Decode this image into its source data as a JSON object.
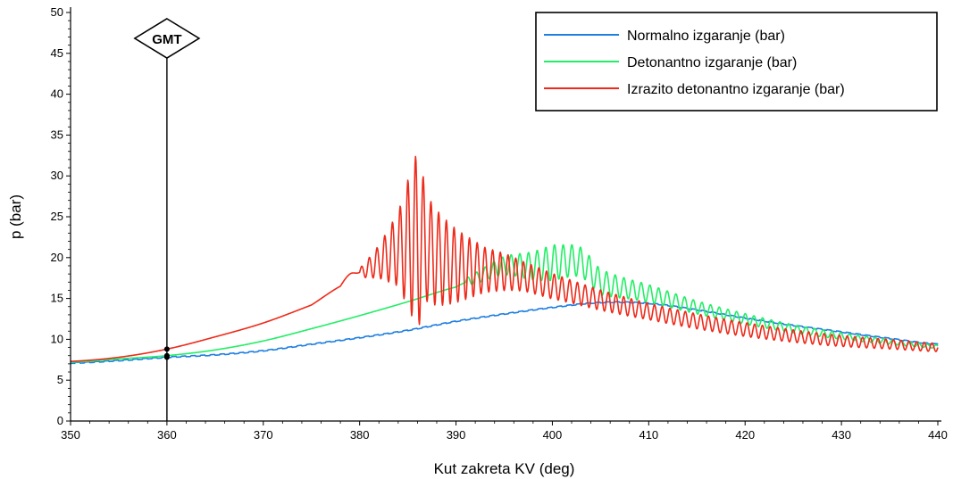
{
  "chart_data": {
    "type": "line",
    "xlabel": "Kut zakreta KV (deg)",
    "ylabel": "p (bar)",
    "xlim": [
      350,
      440
    ],
    "ylim": [
      0,
      50
    ],
    "x_ticks": [
      350,
      360,
      370,
      380,
      390,
      400,
      410,
      420,
      430,
      440
    ],
    "y_ticks": [
      0,
      5,
      10,
      15,
      20,
      25,
      30,
      35,
      40,
      45,
      50
    ],
    "grid": false,
    "legend_position": "top-right",
    "annotation": {
      "label": "GMT",
      "x": 360
    },
    "series": [
      {
        "name": "Normalno izgaranje (bar)",
        "color": "#1f7fe0",
        "style": "smooth",
        "x": [
          350,
          355,
          360,
          365,
          370,
          375,
          380,
          385,
          390,
          395,
          400,
          405,
          410,
          415,
          420,
          425,
          430,
          435,
          440
        ],
        "y": [
          7.1,
          7.4,
          7.8,
          8.1,
          8.6,
          9.4,
          10.2,
          11.1,
          12.2,
          13.1,
          13.9,
          14.5,
          14.4,
          13.6,
          12.6,
          11.7,
          10.9,
          10.1,
          9.4
        ]
      },
      {
        "name": "Detonantno izgaranje (bar)",
        "color": "#22ee66",
        "style": "smooth",
        "x": [
          350,
          355,
          360,
          365,
          370,
          375,
          380,
          385,
          390,
          392,
          395,
          398,
          401,
          403,
          405,
          410,
          415,
          420,
          425,
          430,
          435,
          440
        ],
        "y": [
          7.2,
          7.6,
          8.0,
          8.7,
          9.8,
          11.3,
          12.9,
          14.6,
          16.4,
          17.5,
          19.0,
          19.0,
          19.5,
          19.4,
          17.0,
          15.6,
          13.9,
          12.5,
          11.3,
          10.4,
          9.7,
          9.1
        ],
        "oscillation": [
          {
            "x": 391,
            "amp": 1.0
          },
          {
            "x": 396,
            "amp": 2.6
          },
          {
            "x": 400,
            "amp": 4.4
          },
          {
            "x": 404,
            "amp": 3.4
          },
          {
            "x": 408,
            "amp": 2.4
          },
          {
            "x": 415,
            "amp": 1.6
          },
          {
            "x": 425,
            "amp": 1.0
          },
          {
            "x": 440,
            "amp": 0.4
          }
        ],
        "oscillation_period": 0.9
      },
      {
        "name": "Izrazito detonantno izgaranje (bar)",
        "color": "#ee2a1a",
        "style": "smooth",
        "x": [
          350,
          355,
          360,
          365,
          370,
          375,
          378,
          379,
          380,
          382,
          384,
          386,
          388,
          390,
          393,
          396,
          400,
          405,
          410,
          415,
          420,
          425,
          430,
          435,
          440
        ],
        "y": [
          7.3,
          7.8,
          8.8,
          10.3,
          12.0,
          14.2,
          16.5,
          18.0,
          18.2,
          19.5,
          21.0,
          22.0,
          20.0,
          19.0,
          18.5,
          18.0,
          16.5,
          14.8,
          13.4,
          12.2,
          11.2,
          10.4,
          9.8,
          9.4,
          9.0
        ],
        "oscillation": [
          {
            "x": 380,
            "amp": 1.0
          },
          {
            "x": 382,
            "amp": 4.0
          },
          {
            "x": 384,
            "amp": 9.0
          },
          {
            "x": 386,
            "amp": 22.0
          },
          {
            "x": 387,
            "amp": 13.0
          },
          {
            "x": 390,
            "amp": 9.0
          },
          {
            "x": 393,
            "amp": 5.5
          },
          {
            "x": 397,
            "amp": 3.6
          },
          {
            "x": 402,
            "amp": 2.8
          },
          {
            "x": 410,
            "amp": 2.0
          },
          {
            "x": 420,
            "amp": 1.7
          },
          {
            "x": 440,
            "amp": 1.0
          }
        ],
        "oscillation_period": 0.8
      }
    ]
  }
}
